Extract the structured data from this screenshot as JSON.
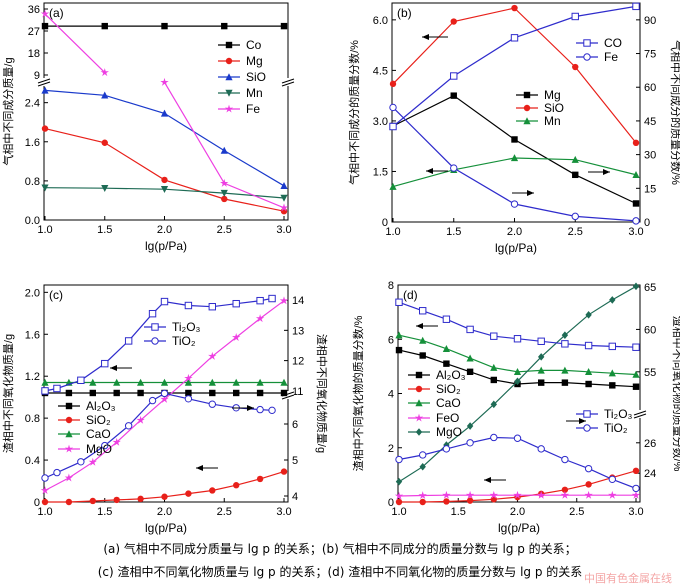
{
  "chart_data": [
    {
      "type": "line",
      "panel_label": "(a)",
      "xlabel": "lg(p/Pa)",
      "ylabel": "气相中不同成分质量/g",
      "x_ticks": [
        "1.0",
        "1.5",
        "2.0",
        "2.5",
        "3.0"
      ],
      "y_ticks": [
        "0.0",
        "0.8",
        "1.6",
        "2.4",
        "9",
        "18",
        "27",
        "36"
      ],
      "y_axis_break": {
        "lower": [
          0,
          2.7
        ],
        "upper": [
          9,
          36
        ]
      },
      "legend_position": "upper-right",
      "series": [
        {
          "name": "Co",
          "color": "#000000",
          "marker": "square",
          "x": [
            1.0,
            1.5,
            2.0,
            2.5,
            3.0
          ],
          "y": [
            29,
            29,
            29,
            29,
            29
          ]
        },
        {
          "name": "Mg",
          "color": "#e8201a",
          "marker": "circle",
          "x": [
            1.0,
            1.5,
            2.0,
            2.5,
            3.0
          ],
          "y": [
            1.87,
            1.58,
            0.82,
            0.43,
            0.18
          ]
        },
        {
          "name": "SiO",
          "color": "#1a3acb",
          "marker": "triangle",
          "x": [
            1.0,
            1.5,
            2.0,
            2.5,
            3.0
          ],
          "y": [
            2.65,
            2.55,
            2.18,
            1.42,
            0.7
          ]
        },
        {
          "name": "Mn",
          "color": "#1e6b55",
          "marker": "triangle-down",
          "x": [
            1.0,
            1.5,
            2.0,
            2.5,
            3.0
          ],
          "y": [
            0.66,
            0.65,
            0.63,
            0.55,
            0.45
          ]
        },
        {
          "name": "Fe",
          "color": "#ee3fe2",
          "marker": "star",
          "x": [
            1.0,
            1.5,
            2.0,
            2.5,
            3.0
          ],
          "y": [
            34,
            10,
            6,
            0.75,
            0.25
          ]
        }
      ]
    },
    {
      "type": "line",
      "panel_label": "(b)",
      "xlabel": "lg(p/Pa)",
      "ylabel": "气相中不同成分的质量分数/%",
      "y2label": "气相中不同成分的质量分数/%",
      "x_ticks": [
        "1.0",
        "1.5",
        "2.0",
        "2.5",
        "3.0"
      ],
      "y_ticks": [
        "0",
        "1.5",
        "3.0",
        "4.5",
        "6.0"
      ],
      "y2_ticks": [
        "0",
        "15",
        "30",
        "45",
        "60",
        "75",
        "90"
      ],
      "ylim": [
        0,
        6.5
      ],
      "y2lim": [
        0,
        97.5
      ],
      "legend_position": "right",
      "series": [
        {
          "name": "Mg",
          "axis": "left",
          "color": "#000000",
          "marker": "square",
          "x": [
            1.0,
            1.5,
            2.0,
            2.5,
            3.0
          ],
          "y": [
            2.85,
            3.75,
            2.45,
            1.4,
            0.55
          ]
        },
        {
          "name": "SiO",
          "axis": "left",
          "color": "#e8201a",
          "marker": "circle",
          "x": [
            1.0,
            1.5,
            2.0,
            2.5,
            3.0
          ],
          "y": [
            4.1,
            5.95,
            6.35,
            4.6,
            2.35
          ]
        },
        {
          "name": "Mn",
          "axis": "left",
          "color": "#15903a",
          "marker": "triangle",
          "x": [
            1.0,
            1.5,
            2.0,
            2.5,
            3.0
          ],
          "y": [
            1.05,
            1.55,
            1.9,
            1.85,
            1.4
          ]
        },
        {
          "name": "CO",
          "axis": "right",
          "color": "#2f2ccc",
          "marker": "open-square",
          "x": [
            1.0,
            1.5,
            2.0,
            2.5,
            3.0
          ],
          "y": [
            42.5,
            65,
            82,
            91.5,
            96
          ]
        },
        {
          "name": "Fe",
          "axis": "right",
          "color": "#2f2ccc",
          "marker": "open-circle",
          "x": [
            1.0,
            1.5,
            2.0,
            2.5,
            3.0
          ],
          "y": [
            51,
            24,
            8,
            2.5,
            0.5
          ]
        }
      ]
    },
    {
      "type": "line",
      "panel_label": "(c)",
      "xlabel": "lg(p/Pa)",
      "ylabel": "渣相中不同氧化物质量/g",
      "y2label": "渣相中不同氧化物质量/g",
      "x_ticks": [
        "1.0",
        "1.5",
        "2.0",
        "2.5",
        "3.0"
      ],
      "y_ticks": [
        "0",
        "0.4",
        "0.8",
        "1.2",
        "1.6",
        "2.0"
      ],
      "y2_ticks": [
        "4",
        "5",
        "6",
        "11",
        "12",
        "13",
        "14"
      ],
      "y2_axis_break": {
        "lower": [
          4,
          7
        ],
        "upper": [
          10.6,
          14.2
        ]
      },
      "legend_position": "left-middle",
      "series": [
        {
          "name": "Al2O3",
          "label": "Al₂O₃",
          "axis": "left",
          "color": "#000000",
          "marker": "square",
          "x": [
            1.0,
            1.2,
            1.4,
            1.6,
            1.8,
            2.0,
            2.2,
            2.4,
            2.6,
            2.8,
            3.0
          ],
          "y": [
            1.04,
            1.04,
            1.04,
            1.04,
            1.04,
            1.04,
            1.04,
            1.04,
            1.04,
            1.04,
            1.04
          ]
        },
        {
          "name": "SiO2",
          "label": "SiO₂",
          "axis": "left",
          "color": "#e8201a",
          "marker": "circle",
          "x": [
            1.0,
            1.2,
            1.4,
            1.6,
            1.8,
            2.0,
            2.2,
            2.4,
            2.6,
            2.8,
            3.0
          ],
          "y": [
            0.0,
            0.0,
            0.01,
            0.02,
            0.03,
            0.05,
            0.08,
            0.11,
            0.16,
            0.22,
            0.29
          ]
        },
        {
          "name": "CaO",
          "label": "CaO",
          "axis": "left",
          "color": "#15903a",
          "marker": "triangle",
          "x": [
            1.0,
            1.2,
            1.4,
            1.6,
            1.8,
            2.0,
            2.2,
            2.4,
            2.6,
            2.8,
            3.0
          ],
          "y": [
            1.14,
            1.14,
            1.14,
            1.14,
            1.14,
            1.14,
            1.14,
            1.14,
            1.14,
            1.14,
            1.14
          ]
        },
        {
          "name": "MgO",
          "label": "MgO",
          "axis": "left",
          "color": "#ee3fe2",
          "marker": "star",
          "x": [
            1.0,
            1.2,
            1.4,
            1.6,
            1.8,
            2.0,
            2.2,
            2.4,
            2.6,
            2.8,
            3.0
          ],
          "y": [
            0.11,
            0.23,
            0.38,
            0.57,
            0.78,
            0.98,
            1.18,
            1.39,
            1.57,
            1.75,
            1.92
          ]
        },
        {
          "name": "Ti2O3",
          "label": "Ti₂O₃",
          "axis": "right",
          "color": "#2f2ccc",
          "marker": "open-square",
          "x": [
            1.0,
            1.1,
            1.3,
            1.5,
            1.7,
            1.9,
            2.0,
            2.2,
            2.4,
            2.6,
            2.8,
            2.9
          ],
          "y": [
            11.0,
            11.08,
            11.35,
            11.9,
            12.65,
            13.55,
            13.95,
            13.82,
            13.78,
            13.88,
            13.98,
            14.05
          ]
        },
        {
          "name": "TiO2",
          "label": "TiO₂",
          "axis": "right",
          "color": "#2f2ccc",
          "marker": "open-circle",
          "x": [
            1.0,
            1.1,
            1.3,
            1.5,
            1.7,
            1.9,
            2.0,
            2.2,
            2.4,
            2.6,
            2.8,
            2.9
          ],
          "y": [
            4.5,
            4.65,
            4.95,
            5.4,
            5.95,
            6.65,
            6.85,
            6.7,
            6.55,
            6.45,
            6.4,
            6.38
          ]
        }
      ]
    },
    {
      "type": "line",
      "panel_label": "(d)",
      "xlabel": "lg(p/Pa)",
      "ylabel": "渣相中不同氧化物的质量分数/%",
      "y2label": "渣相中不同氧化物的质量分数/%",
      "x_ticks": [
        "1.0",
        "1.5",
        "2.0",
        "2.5",
        "3.0"
      ],
      "y_ticks": [
        "0",
        "2",
        "4",
        "6",
        "8"
      ],
      "y2_ticks": [
        "24",
        "26",
        "55",
        "60",
        "65"
      ],
      "y2_axis_break": {
        "lower": [
          22.5,
          27.5
        ],
        "upper": [
          50.5,
          65
        ]
      },
      "legend_position": "left-middle",
      "series": [
        {
          "name": "Al2O3",
          "label": "Al₂O₃",
          "axis": "left",
          "color": "#000000",
          "marker": "square",
          "x": [
            1.0,
            1.2,
            1.4,
            1.6,
            1.8,
            2.0,
            2.2,
            2.4,
            2.6,
            2.8,
            3.0
          ],
          "y": [
            5.6,
            5.4,
            5.1,
            4.8,
            4.5,
            4.35,
            4.4,
            4.4,
            4.35,
            4.3,
            4.25
          ]
        },
        {
          "name": "SiO2",
          "label": "SiO₂",
          "axis": "left",
          "color": "#e8201a",
          "marker": "circle",
          "x": [
            1.0,
            1.2,
            1.4,
            1.6,
            1.8,
            2.0,
            2.2,
            2.4,
            2.6,
            2.8,
            3.0
          ],
          "y": [
            0.0,
            0.0,
            0.02,
            0.05,
            0.1,
            0.18,
            0.3,
            0.45,
            0.65,
            0.9,
            1.15
          ]
        },
        {
          "name": "CaO",
          "label": "CaO",
          "axis": "left",
          "color": "#15903a",
          "marker": "triangle",
          "x": [
            1.0,
            1.2,
            1.4,
            1.6,
            1.8,
            2.0,
            2.2,
            2.4,
            2.6,
            2.8,
            3.0
          ],
          "y": [
            6.15,
            5.95,
            5.65,
            5.3,
            4.95,
            4.8,
            4.85,
            4.85,
            4.8,
            4.75,
            4.7
          ]
        },
        {
          "name": "FeO",
          "label": "FeO",
          "axis": "left",
          "color": "#ee3fe2",
          "marker": "star",
          "x": [
            1.0,
            1.2,
            1.4,
            1.6,
            1.8,
            2.0,
            2.2,
            2.4,
            2.6,
            2.8,
            3.0
          ],
          "y": [
            0.22,
            0.24,
            0.25,
            0.25,
            0.25,
            0.25,
            0.25,
            0.25,
            0.25,
            0.25,
            0.25
          ]
        },
        {
          "name": "MgO",
          "label": "MgO",
          "axis": "left",
          "color": "#1e6b55",
          "marker": "diamond",
          "x": [
            1.0,
            1.2,
            1.4,
            1.6,
            1.8,
            2.0,
            2.2,
            2.4,
            2.6,
            2.8,
            3.0
          ],
          "y": [
            0.75,
            1.3,
            2.1,
            2.8,
            3.6,
            4.45,
            5.35,
            6.15,
            6.9,
            7.45,
            7.95
          ]
        },
        {
          "name": "Ti2O3",
          "label": "Ti₂O₃",
          "axis": "right",
          "color": "#2f2ccc",
          "marker": "open-square",
          "x": [
            1.0,
            1.2,
            1.4,
            1.6,
            1.8,
            2.0,
            2.2,
            2.4,
            2.6,
            2.8,
            3.0
          ],
          "y": [
            63.2,
            62.2,
            61.2,
            60.0,
            59.2,
            58.9,
            58.6,
            58.3,
            58.1,
            58.0,
            57.9
          ]
        },
        {
          "name": "TiO2",
          "label": "TiO₂",
          "axis": "right",
          "color": "#2f2ccc",
          "marker": "open-circle",
          "x": [
            1.0,
            1.2,
            1.4,
            1.6,
            1.8,
            2.0,
            2.2,
            2.4,
            2.6,
            2.8,
            3.0
          ],
          "y": [
            24.9,
            25.2,
            25.6,
            26.0,
            26.35,
            26.3,
            25.6,
            24.9,
            24.3,
            23.6,
            23.0
          ]
        }
      ]
    }
  ],
  "caption": {
    "line1": "(a) 气相中不同成分质量与 lg p 的关系；(b) 气相中不同成分的质量分数与 lg p 的关系；",
    "line2": "(c) 渣相中不同氧化物质量与 lg p 的关系；(d) 渣相中不同氧化物的质量分数与 lg p 的关系"
  },
  "watermark": "中国有色金属在线"
}
